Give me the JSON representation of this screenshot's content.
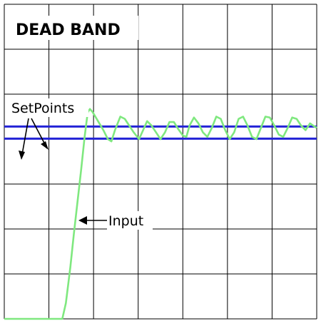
{
  "title": "DEAD BAND",
  "annotations": {
    "setpoints": "SetPoints",
    "input": "Input"
  },
  "colors": {
    "grid": "#000000",
    "setpoint": "#2323d6",
    "input": "#7fe87f",
    "background": "#ffffff"
  },
  "chart_data": {
    "type": "line",
    "grid": true,
    "series": [
      {
        "role": "setpoint-high",
        "points": [
          [
            0,
            4.28
          ],
          [
            7,
            4.28
          ]
        ]
      },
      {
        "role": "setpoint-low",
        "points": [
          [
            0,
            4.01
          ],
          [
            7,
            4.01
          ]
        ]
      },
      {
        "role": "input",
        "points": [
          [
            0,
            0.0
          ],
          [
            1.3,
            0.0
          ],
          [
            1.38,
            0.35
          ],
          [
            1.48,
            1.15
          ],
          [
            1.56,
            1.9
          ],
          [
            1.64,
            2.6
          ],
          [
            1.72,
            3.3
          ],
          [
            1.8,
            4.05
          ],
          [
            1.87,
            4.6
          ],
          [
            1.92,
            4.67
          ],
          [
            1.98,
            4.6
          ],
          [
            2.1,
            4.4
          ],
          [
            2.22,
            4.2
          ],
          [
            2.32,
            4.0
          ],
          [
            2.4,
            3.95
          ],
          [
            2.48,
            4.2
          ],
          [
            2.6,
            4.5
          ],
          [
            2.7,
            4.45
          ],
          [
            2.8,
            4.3
          ],
          [
            2.9,
            4.15
          ],
          [
            3.02,
            4.0
          ],
          [
            3.12,
            4.22
          ],
          [
            3.2,
            4.4
          ],
          [
            3.3,
            4.3
          ],
          [
            3.42,
            4.12
          ],
          [
            3.5,
            4.0
          ],
          [
            3.6,
            4.15
          ],
          [
            3.7,
            4.38
          ],
          [
            3.8,
            4.38
          ],
          [
            3.9,
            4.22
          ],
          [
            4.0,
            4.08
          ],
          [
            4.08,
            4.05
          ],
          [
            4.15,
            4.3
          ],
          [
            4.25,
            4.48
          ],
          [
            4.35,
            4.35
          ],
          [
            4.45,
            4.15
          ],
          [
            4.55,
            4.05
          ],
          [
            4.65,
            4.25
          ],
          [
            4.75,
            4.5
          ],
          [
            4.85,
            4.45
          ],
          [
            4.95,
            4.2
          ],
          [
            5.05,
            4.0
          ],
          [
            5.15,
            4.15
          ],
          [
            5.25,
            4.45
          ],
          [
            5.35,
            4.5
          ],
          [
            5.45,
            4.3
          ],
          [
            5.55,
            4.05
          ],
          [
            5.65,
            4.0
          ],
          [
            5.75,
            4.25
          ],
          [
            5.85,
            4.5
          ],
          [
            5.95,
            4.48
          ],
          [
            6.05,
            4.3
          ],
          [
            6.15,
            4.1
          ],
          [
            6.25,
            4.05
          ],
          [
            6.35,
            4.25
          ],
          [
            6.45,
            4.48
          ],
          [
            6.55,
            4.45
          ],
          [
            6.65,
            4.3
          ],
          [
            6.75,
            4.2
          ],
          [
            6.85,
            4.35
          ],
          [
            6.92,
            4.3
          ],
          [
            7.0,
            4.25
          ]
        ]
      }
    ],
    "xlim": [
      0,
      7
    ],
    "ylim": [
      0,
      7
    ]
  }
}
